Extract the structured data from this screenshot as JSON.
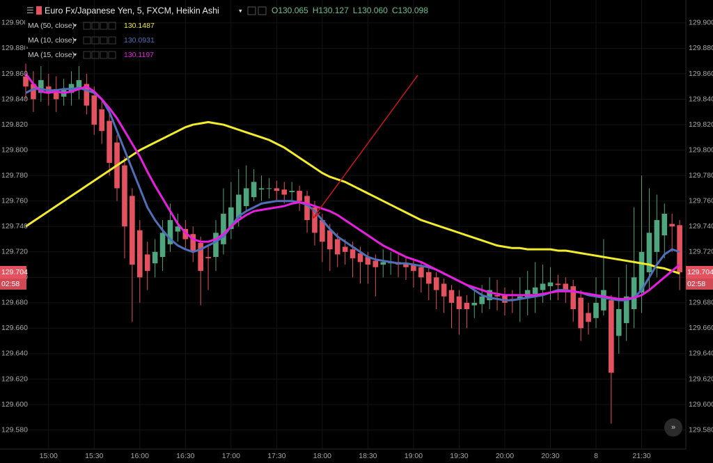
{
  "header": {
    "symbol": "Euro Fx/Japanese Yen, 5, FXCM, Heikin Ashi",
    "ohlc": [
      "O130.065",
      "H130.127",
      "L130.060",
      "C130.098"
    ]
  },
  "chart_data": {
    "type": "candlestick",
    "categories": [
      null,
      null,
      null,
      "15:00",
      null,
      null,
      null,
      null,
      null,
      "15:30",
      null,
      null,
      null,
      null,
      null,
      "16:00",
      null,
      null,
      null,
      null,
      null,
      "16:30",
      null,
      null,
      null,
      null,
      null,
      "17:00",
      null,
      null,
      null,
      null,
      null,
      "17:30",
      null,
      null,
      null,
      null,
      null,
      "18:00",
      null,
      null,
      null,
      null,
      null,
      "18:30",
      null,
      null,
      null,
      null,
      null,
      "19:00",
      null,
      null,
      null,
      null,
      null,
      "19:30",
      null,
      null,
      null,
      null,
      null,
      "20:00",
      null,
      null,
      null,
      null,
      null,
      "20:30",
      null,
      null,
      null,
      null,
      null,
      "8",
      null,
      null,
      null,
      null,
      null,
      "21:30",
      null,
      null,
      null,
      null,
      null
    ],
    "open": [
      129.858,
      129.852,
      129.845,
      129.85,
      129.848,
      129.842,
      129.845,
      129.848,
      129.852,
      129.843,
      129.832,
      129.823,
      129.806,
      129.788,
      129.764,
      129.737,
      129.718,
      129.711,
      129.716,
      129.726,
      129.736,
      129.738,
      129.734,
      129.727,
      129.716,
      129.716,
      129.726,
      129.738,
      129.747,
      129.756,
      129.763,
      129.769,
      129.77,
      129.77,
      129.769,
      129.767,
      129.768,
      129.764,
      129.755,
      129.745,
      129.737,
      129.73,
      129.724,
      129.722,
      129.719,
      129.716,
      129.713,
      129.71,
      129.711,
      129.712,
      129.711,
      129.71,
      129.708,
      129.704,
      129.7,
      129.695,
      129.69,
      129.685,
      129.68,
      129.678,
      129.679,
      129.682,
      129.686,
      129.686,
      129.683,
      129.683,
      129.684,
      129.687,
      129.69,
      129.693,
      129.695,
      129.695,
      129.693,
      129.684,
      129.672,
      129.668,
      129.674,
      129.682,
      129.654,
      129.664,
      129.675,
      129.688,
      129.704,
      129.72,
      129.733,
      129.742,
      129.741
    ],
    "high": [
      129.868,
      129.862,
      129.866,
      129.86,
      129.858,
      129.856,
      129.862,
      129.866,
      129.86,
      129.85,
      129.84,
      129.83,
      129.812,
      129.795,
      129.77,
      129.745,
      129.728,
      129.73,
      129.745,
      129.758,
      129.75,
      129.745,
      129.74,
      129.732,
      129.725,
      129.745,
      129.77,
      129.775,
      129.785,
      129.788,
      129.785,
      129.78,
      129.778,
      129.776,
      129.775,
      129.775,
      129.772,
      129.768,
      129.76,
      129.75,
      129.742,
      129.735,
      129.73,
      129.728,
      129.724,
      129.72,
      129.718,
      129.722,
      129.72,
      129.718,
      129.716,
      129.715,
      129.712,
      129.708,
      129.704,
      129.699,
      129.694,
      129.69,
      129.686,
      129.69,
      129.694,
      129.7,
      129.698,
      129.692,
      129.69,
      129.7,
      129.705,
      129.712,
      129.71,
      129.708,
      129.702,
      129.7,
      129.698,
      129.69,
      129.68,
      129.7,
      129.73,
      129.686,
      129.7,
      129.71,
      129.755,
      129.78,
      129.77,
      129.765,
      129.758,
      129.75,
      129.745
    ],
    "low": [
      129.84,
      129.83,
      129.838,
      129.835,
      129.83,
      129.835,
      129.835,
      129.84,
      129.828,
      129.812,
      129.805,
      129.78,
      129.76,
      129.715,
      129.665,
      129.68,
      129.69,
      129.7,
      129.705,
      129.72,
      129.728,
      129.722,
      129.712,
      129.678,
      129.69,
      129.705,
      129.718,
      129.73,
      129.74,
      129.752,
      129.76,
      129.76,
      129.762,
      129.76,
      129.758,
      129.76,
      129.752,
      129.735,
      129.725,
      129.712,
      129.705,
      129.708,
      129.71,
      129.7,
      129.695,
      129.695,
      129.685,
      129.7,
      129.702,
      129.7,
      129.698,
      129.692,
      129.688,
      129.682,
      129.675,
      129.672,
      129.66,
      129.655,
      129.66,
      129.668,
      129.672,
      129.675,
      129.674,
      129.67,
      129.672,
      129.665,
      129.67,
      129.672,
      129.68,
      129.682,
      129.682,
      129.68,
      129.665,
      129.65,
      129.655,
      129.66,
      129.67,
      129.585,
      129.64,
      129.65,
      129.66,
      129.672,
      129.69,
      129.7,
      129.715,
      129.72,
      129.69
    ],
    "close": [
      129.85,
      129.84,
      129.855,
      129.845,
      129.84,
      129.848,
      129.852,
      129.855,
      129.835,
      129.82,
      129.815,
      129.79,
      129.77,
      129.74,
      129.71,
      129.7,
      129.705,
      129.72,
      129.735,
      129.745,
      129.74,
      129.73,
      129.72,
      129.705,
      129.715,
      129.735,
      129.75,
      129.755,
      129.765,
      129.77,
      129.775,
      129.77,
      129.77,
      129.768,
      129.765,
      129.768,
      129.76,
      129.745,
      129.735,
      129.728,
      129.722,
      129.718,
      129.72,
      129.715,
      129.712,
      129.71,
      129.708,
      129.712,
      129.712,
      129.71,
      129.708,
      129.705,
      129.7,
      129.695,
      129.69,
      129.685,
      129.68,
      129.675,
      129.675,
      129.68,
      129.685,
      129.69,
      129.685,
      129.68,
      129.682,
      129.685,
      129.69,
      129.692,
      129.695,
      129.696,
      129.694,
      129.69,
      129.675,
      129.66,
      129.665,
      129.68,
      129.69,
      129.625,
      129.675,
      129.685,
      129.7,
      129.72,
      129.735,
      129.745,
      129.75,
      129.74,
      129.704
    ],
    "up_color": "#4fa57d",
    "down_color": "#e4525f",
    "series": [
      {
        "name": "MA (50, close)",
        "legend_value": "130.1487",
        "color": "#f3ec2a",
        "values": [
          129.74,
          129.744,
          129.748,
          129.752,
          129.756,
          129.76,
          129.764,
          129.768,
          129.772,
          129.776,
          129.78,
          129.784,
          129.788,
          129.792,
          129.796,
          129.8,
          129.803,
          129.806,
          129.809,
          129.812,
          129.815,
          129.818,
          129.82,
          129.821,
          129.822,
          129.821,
          129.82,
          129.818,
          129.816,
          129.814,
          129.812,
          129.81,
          129.808,
          129.805,
          129.802,
          129.798,
          129.794,
          129.79,
          129.786,
          129.782,
          129.779,
          129.777,
          129.775,
          129.772,
          129.769,
          129.766,
          129.763,
          129.76,
          129.757,
          129.754,
          129.751,
          129.748,
          129.745,
          129.743,
          129.741,
          129.739,
          129.737,
          129.735,
          129.733,
          129.731,
          129.729,
          129.727,
          129.725,
          129.724,
          129.723,
          129.723,
          129.722,
          129.722,
          129.722,
          129.722,
          129.721,
          129.721,
          129.72,
          129.719,
          129.718,
          129.717,
          129.716,
          129.715,
          129.714,
          129.713,
          129.712,
          129.711,
          129.71,
          129.708,
          129.707,
          129.705,
          129.703
        ]
      },
      {
        "name": "MA (10, close)",
        "legend_value": "130.0931",
        "color": "#4f6fb8",
        "values": [
          129.845,
          129.848,
          129.848,
          129.847,
          129.847,
          129.848,
          129.848,
          129.849,
          129.847,
          129.845,
          129.84,
          129.83,
          129.815,
          129.8,
          129.785,
          129.77,
          129.755,
          129.745,
          129.737,
          129.73,
          129.725,
          129.722,
          129.72,
          129.722,
          129.725,
          129.728,
          129.732,
          129.74,
          129.748,
          129.752,
          129.755,
          129.758,
          129.759,
          129.76,
          129.76,
          129.76,
          129.759,
          129.757,
          129.752,
          129.745,
          129.738,
          129.732,
          129.728,
          129.724,
          129.72,
          129.716,
          129.714,
          129.713,
          129.712,
          129.711,
          129.711,
          129.71,
          129.709,
          129.708,
          129.706,
          129.703,
          129.7,
          129.697,
          129.694,
          129.69,
          129.686,
          129.684,
          129.683,
          129.682,
          129.682,
          129.683,
          129.684,
          129.685,
          129.686,
          129.688,
          129.69,
          129.69,
          129.689,
          129.688,
          129.686,
          129.685,
          129.684,
          129.683,
          129.682,
          129.682,
          129.684,
          129.69,
          129.7,
          129.71,
          129.718,
          129.722,
          129.72
        ]
      },
      {
        "name": "MA (15, close)",
        "legend_value": "130.1197",
        "color": "#e81ee0",
        "values": [
          129.86,
          129.852,
          129.846,
          129.845,
          129.846,
          129.845,
          129.846,
          129.848,
          129.85,
          129.846,
          129.84,
          129.833,
          129.825,
          129.815,
          129.805,
          129.795,
          129.783,
          129.772,
          129.762,
          129.752,
          129.742,
          129.735,
          129.73,
          129.728,
          129.728,
          129.73,
          129.734,
          129.74,
          129.745,
          129.749,
          129.752,
          129.753,
          129.754,
          129.755,
          129.756,
          129.758,
          129.759,
          129.758,
          129.756,
          129.754,
          129.752,
          129.749,
          129.745,
          129.741,
          129.737,
          129.733,
          129.729,
          129.725,
          129.722,
          129.719,
          129.716,
          129.714,
          129.712,
          129.709,
          129.706,
          129.703,
          129.7,
          129.697,
          129.694,
          129.692,
          129.69,
          129.688,
          129.687,
          129.686,
          129.686,
          129.686,
          129.686,
          129.686,
          129.687,
          129.688,
          129.689,
          129.689,
          129.689,
          129.688,
          129.687,
          129.686,
          129.685,
          129.684,
          129.683,
          129.683,
          129.684,
          129.686,
          129.69,
          129.695,
          129.7,
          129.705,
          129.71
        ]
      }
    ],
    "ylim": [
      129.565,
      129.918
    ],
    "yticks": [
      {
        "value": 129.9,
        "label": "129.900"
      },
      {
        "value": 129.88,
        "label": "129.880"
      },
      {
        "value": 129.86,
        "label": "129.860"
      },
      {
        "value": 129.84,
        "label": "129.840"
      },
      {
        "value": 129.82,
        "label": "129.820"
      },
      {
        "value": 129.8,
        "label": "129.800"
      },
      {
        "value": 129.78,
        "label": "129.780"
      },
      {
        "value": 129.76,
        "label": "129.760"
      },
      {
        "value": 129.74,
        "label": "129.740"
      },
      {
        "value": 129.72,
        "label": "129.720"
      },
      {
        "value": 129.7,
        "label": "129.700"
      },
      {
        "value": 129.68,
        "label": "129.680"
      },
      {
        "value": 129.66,
        "label": "129.660"
      },
      {
        "value": 129.64,
        "label": "129.640"
      },
      {
        "value": 129.62,
        "label": "129.620"
      },
      {
        "value": 129.6,
        "label": "129.600"
      },
      {
        "value": 129.58,
        "label": "129.580"
      }
    ],
    "last_price": {
      "value": 129.704,
      "label": "129.704"
    },
    "countdown": "02:58",
    "grid": true
  }
}
